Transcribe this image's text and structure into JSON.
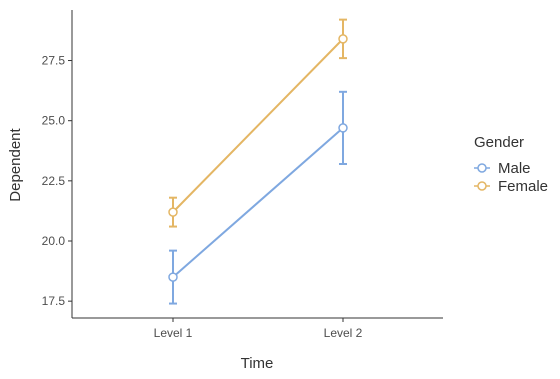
{
  "chart_data": {
    "type": "line",
    "title": "",
    "xlabel": "Time",
    "ylabel": "Dependent",
    "categories": [
      "Level 1",
      "Level 2"
    ],
    "ylim": [
      16.8,
      29.6
    ],
    "yticks": [
      17.5,
      20.0,
      22.5,
      25.0,
      27.5
    ],
    "ytick_labels": [
      "17.5",
      "20.0",
      "22.5",
      "25.0",
      "27.5"
    ],
    "grid": false,
    "legend": {
      "title": "Gender",
      "position": "right"
    },
    "error_bars": true,
    "series": [
      {
        "name": "Male",
        "color": "#7fa8e0",
        "values": [
          18.5,
          24.7
        ],
        "lower": [
          17.4,
          23.2
        ],
        "upper": [
          19.6,
          26.2
        ]
      },
      {
        "name": "Female",
        "color": "#e4b664",
        "values": [
          21.2,
          28.4
        ],
        "lower": [
          20.6,
          27.6
        ],
        "upper": [
          21.8,
          29.2
        ]
      }
    ]
  }
}
